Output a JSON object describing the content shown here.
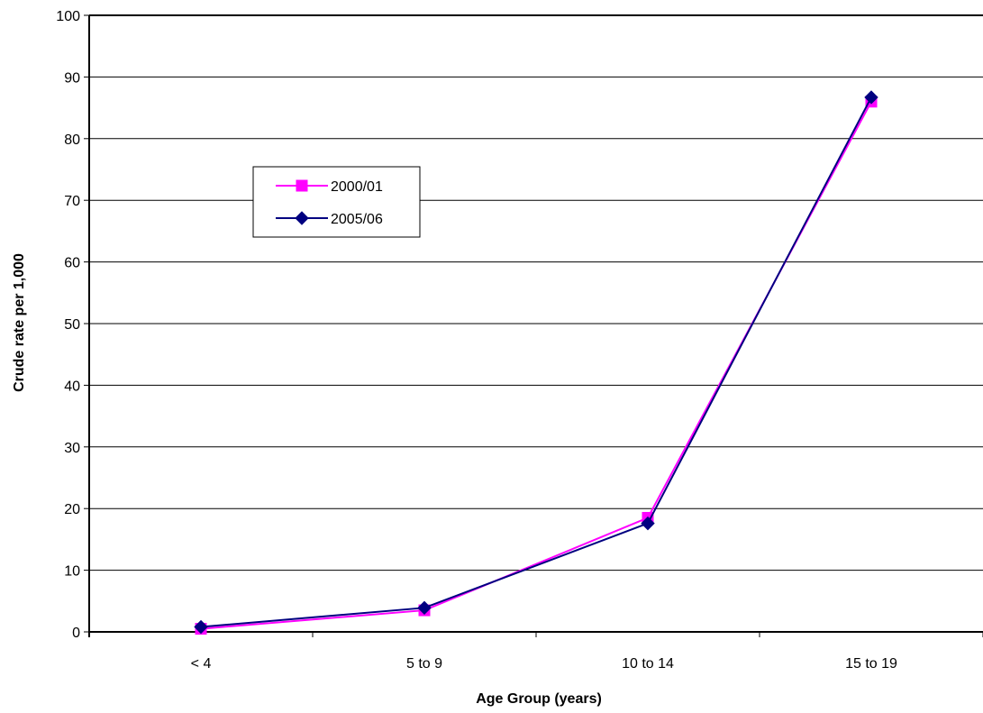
{
  "chart_data": {
    "type": "line",
    "title": "",
    "xlabel": "Age Group (years)",
    "ylabel": "Crude rate per 1,000",
    "categories": [
      "< 4",
      "5 to 9",
      "10 to 14",
      "15 to 19"
    ],
    "ylim": [
      0,
      100
    ],
    "yticks": [
      "0",
      "10",
      "20",
      "30",
      "40",
      "50",
      "60",
      "70",
      "80",
      "90",
      "100"
    ],
    "grid": "horizontal",
    "legend_position": "upper-left",
    "series": [
      {
        "name": "2000/01",
        "values": [
          0.5,
          3.5,
          18.5,
          86.0
        ],
        "color": "#ff00ff",
        "marker": "square"
      },
      {
        "name": "2005/06",
        "values": [
          0.8,
          3.9,
          17.6,
          86.7
        ],
        "color": "#000080",
        "marker": "diamond"
      }
    ]
  }
}
